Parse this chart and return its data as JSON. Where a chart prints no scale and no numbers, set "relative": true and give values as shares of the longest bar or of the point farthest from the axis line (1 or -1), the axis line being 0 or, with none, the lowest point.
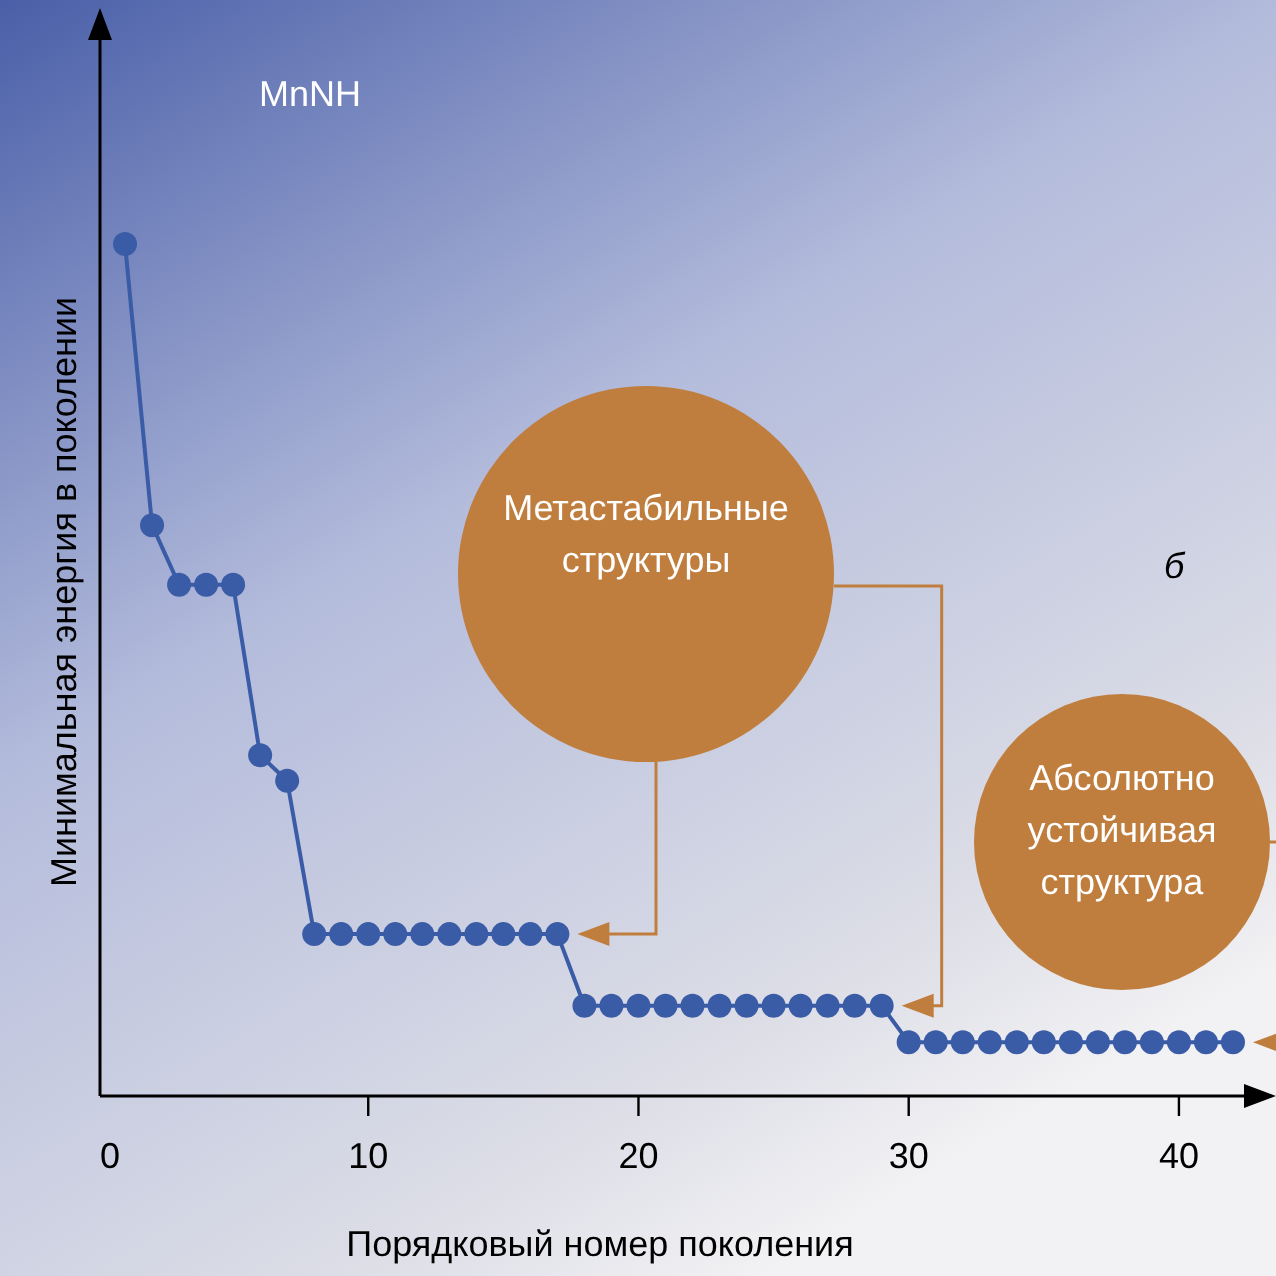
{
  "chart_data": {
    "type": "line",
    "title": "MnNH",
    "xlabel": "Порядковый номер поколения",
    "ylabel": "Минимальная энергия в поколении",
    "relative": true,
    "marker": "circle",
    "xlim": [
      0,
      43
    ],
    "xticks": [
      0,
      10,
      20,
      30,
      40
    ],
    "x": [
      1,
      2,
      3,
      4,
      5,
      6,
      7,
      8,
      9,
      10,
      11,
      12,
      13,
      14,
      15,
      16,
      17,
      18,
      19,
      20,
      21,
      22,
      23,
      24,
      25,
      26,
      27,
      28,
      29,
      30,
      31,
      32,
      33,
      34,
      35,
      36,
      37,
      38,
      39,
      40,
      41,
      42
    ],
    "series": [
      {
        "color": "#3a5ca6",
        "values": [
          1,
          0.67,
          0.6,
          0.6,
          0.6,
          0.4,
          0.37,
          0.19,
          0.19,
          0.19,
          0.19,
          0.19,
          0.19,
          0.19,
          0.19,
          0.19,
          0.19,
          0.106,
          0.106,
          0.106,
          0.106,
          0.106,
          0.106,
          0.106,
          0.106,
          0.106,
          0.106,
          0.106,
          0.106,
          0.063,
          0.063,
          0.063,
          0.063,
          0.063,
          0.063,
          0.063,
          0.063,
          0.063,
          0.063,
          0.063,
          0.063,
          0.063
        ]
      }
    ],
    "annotations": [
      "Метастабильные\nструктуры",
      "Абсолютно\nустойчивая\nструктура",
      "б"
    ]
  }
}
